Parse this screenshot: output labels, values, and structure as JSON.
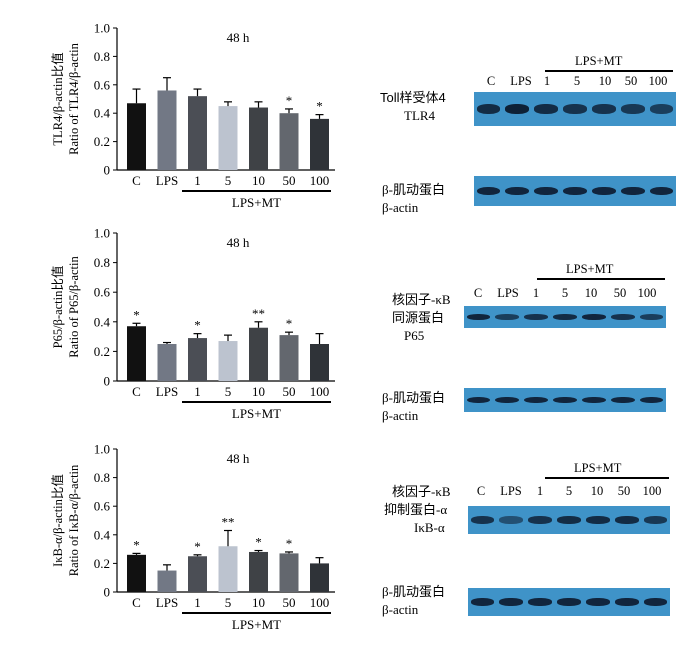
{
  "colors": {
    "C": "#111111",
    "LPS": "#727885",
    "1": "#4b4e55",
    "5": "#bcc3cf",
    "10": "#3f4246",
    "50": "#63676e",
    "100": "#2f3338",
    "blot_bg": "#3f93c8",
    "blot_band": "#0c1a2e"
  },
  "chart_data": [
    {
      "type": "bar",
      "title": "48 h",
      "ylabel_cn": "TLR4/β-actin比值",
      "ylabel_en": "Ratio of TLR4/β-actin",
      "categories": [
        "C",
        "LPS",
        "1",
        "5",
        "10",
        "50",
        "100"
      ],
      "values": [
        0.47,
        0.56,
        0.52,
        0.45,
        0.44,
        0.4,
        0.36
      ],
      "errors": [
        0.1,
        0.09,
        0.05,
        0.03,
        0.04,
        0.03,
        0.03
      ],
      "significance": [
        "",
        "",
        "",
        "",
        "",
        "*",
        "*"
      ],
      "group_label": "LPS+MT",
      "ylim": [
        0,
        1.0
      ],
      "yticks": [
        "0",
        "0.2",
        "0.4",
        "0.6",
        "0.8",
        "1.0"
      ]
    },
    {
      "type": "bar",
      "title": "48 h",
      "ylabel_cn": "P65/β-actin比值",
      "ylabel_en": "Ratio of P65/β-actin",
      "categories": [
        "C",
        "LPS",
        "1",
        "5",
        "10",
        "50",
        "100"
      ],
      "values": [
        0.37,
        0.25,
        0.29,
        0.27,
        0.36,
        0.31,
        0.25
      ],
      "errors": [
        0.02,
        0.01,
        0.03,
        0.04,
        0.04,
        0.02,
        0.07
      ],
      "significance": [
        "*",
        "",
        "*",
        "",
        "**",
        "*",
        ""
      ],
      "group_label": "LPS+MT",
      "ylim": [
        0,
        1.0
      ],
      "yticks": [
        "0",
        "0.2",
        "0.4",
        "0.6",
        "0.8",
        "1.0"
      ]
    },
    {
      "type": "bar",
      "title": "48 h",
      "ylabel_cn": "IκB-α/β-actin比值",
      "ylabel_en": "Ratio of IκB-α/β-actin",
      "categories": [
        "C",
        "LPS",
        "1",
        "5",
        "10",
        "50",
        "100"
      ],
      "values": [
        0.26,
        0.15,
        0.25,
        0.32,
        0.28,
        0.27,
        0.2
      ],
      "errors": [
        0.01,
        0.04,
        0.01,
        0.11,
        0.01,
        0.01,
        0.04
      ],
      "significance": [
        "*",
        "",
        "*",
        "**",
        "*",
        "*",
        ""
      ],
      "group_label": "LPS+MT",
      "ylim": [
        0,
        1.0
      ],
      "yticks": [
        "0",
        "0.2",
        "0.4",
        "0.6",
        "0.8",
        "1.0"
      ]
    }
  ],
  "blots": [
    {
      "lanes": [
        "C",
        "LPS",
        "1",
        "5",
        "10",
        "50",
        "100"
      ],
      "group_label": "LPS+MT",
      "target_label_cn": "Toll样受体4",
      "target_label_en": "TLR4",
      "loading_label_cn": "β-肌动蛋白",
      "loading_label_en": "β-actin",
      "target_intensity": [
        0.85,
        0.95,
        0.85,
        0.8,
        0.8,
        0.75,
        0.7
      ],
      "loading_intensity": [
        0.9,
        0.9,
        0.9,
        0.9,
        0.9,
        0.9,
        0.9
      ]
    },
    {
      "lanes": [
        "C",
        "LPS",
        "1",
        "5",
        "10",
        "50",
        "100"
      ],
      "group_label": "LPS+MT",
      "target_label_cn": "核因子-κB",
      "target_label_cn2": "同源蛋白",
      "target_label_en": "P65",
      "loading_label_cn": "β-肌动蛋白",
      "loading_label_en": "β-actin",
      "target_intensity": [
        0.9,
        0.7,
        0.8,
        0.85,
        0.9,
        0.8,
        0.7
      ],
      "loading_intensity": [
        0.9,
        0.9,
        0.9,
        0.9,
        0.9,
        0.9,
        0.9
      ]
    },
    {
      "lanes": [
        "C",
        "LPS",
        "1",
        "5",
        "10",
        "50",
        "100"
      ],
      "group_label": "LPS+MT",
      "target_label_cn": "核因子-κB",
      "target_label_cn2": "抑制蛋白-α",
      "target_label_en": "IκB-α",
      "loading_label_cn": "β-肌动蛋白",
      "loading_label_en": "β-actin",
      "target_intensity": [
        0.8,
        0.55,
        0.8,
        0.85,
        0.85,
        0.85,
        0.75
      ],
      "loading_intensity": [
        0.9,
        0.9,
        0.9,
        0.9,
        0.9,
        0.9,
        0.9
      ]
    }
  ]
}
